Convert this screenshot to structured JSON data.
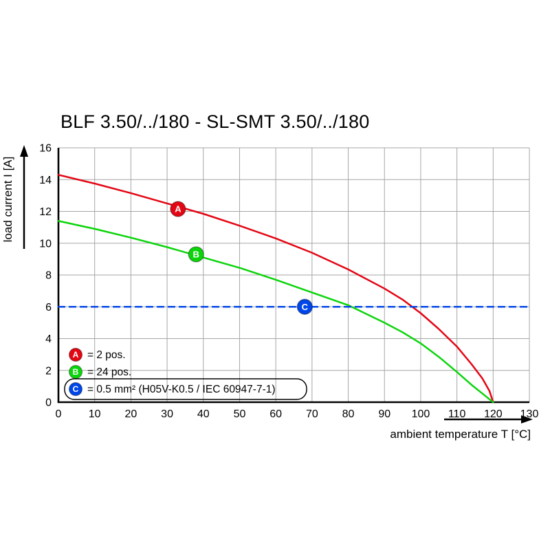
{
  "title": "BLF 3.50/../180 - SL-SMT 3.50/../180",
  "axes": {
    "x": {
      "label": "ambient temperature T [°C]",
      "min": 0,
      "max": 130,
      "tick_step": 10
    },
    "y": {
      "label": "load current I [A]",
      "min": 0,
      "max": 16,
      "tick_step": 2
    }
  },
  "legend": [
    {
      "marker": "A",
      "color": "#e30613",
      "label": "= 2 pos.",
      "boxed": false
    },
    {
      "marker": "B",
      "color": "#0bd40b",
      "label": "= 24 pos.",
      "boxed": false
    },
    {
      "marker": "C",
      "color": "#0046e8",
      "label": "= 0.5 mm² (H05V-K0.5 / IEC 60947-7-1)",
      "boxed": true
    }
  ],
  "chart_data": {
    "type": "line",
    "title": "BLF 3.50/../180 - SL-SMT 3.50/../180",
    "xlabel": "ambient temperature T [°C]",
    "ylabel": "load current I [A]",
    "xlim": [
      0,
      130
    ],
    "ylim": [
      0,
      16
    ],
    "grid": true,
    "grid_color": "#a6a6a6",
    "series": [
      {
        "name": "A",
        "label": "2 pos.",
        "color": "#e30613",
        "style": "solid",
        "points": [
          [
            0,
            14.3
          ],
          [
            10,
            13.75
          ],
          [
            20,
            13.15
          ],
          [
            30,
            12.5
          ],
          [
            40,
            11.85
          ],
          [
            50,
            11.1
          ],
          [
            60,
            10.3
          ],
          [
            70,
            9.4
          ],
          [
            80,
            8.35
          ],
          [
            90,
            7.15
          ],
          [
            95,
            6.45
          ],
          [
            100,
            5.6
          ],
          [
            105,
            4.6
          ],
          [
            110,
            3.5
          ],
          [
            114,
            2.4
          ],
          [
            117,
            1.5
          ],
          [
            119,
            0.7
          ],
          [
            120,
            0
          ]
        ],
        "marker_at": [
          33,
          12.15
        ]
      },
      {
        "name": "B",
        "label": "24 pos.",
        "color": "#0bd40b",
        "style": "solid",
        "points": [
          [
            0,
            11.4
          ],
          [
            10,
            10.9
          ],
          [
            20,
            10.35
          ],
          [
            30,
            9.75
          ],
          [
            40,
            9.1
          ],
          [
            50,
            8.45
          ],
          [
            60,
            7.7
          ],
          [
            70,
            6.9
          ],
          [
            80,
            6.1
          ],
          [
            90,
            5.0
          ],
          [
            95,
            4.4
          ],
          [
            100,
            3.7
          ],
          [
            105,
            2.85
          ],
          [
            110,
            1.9
          ],
          [
            114,
            1.1
          ],
          [
            117,
            0.55
          ],
          [
            120,
            0
          ]
        ],
        "marker_at": [
          38,
          9.3
        ]
      },
      {
        "name": "C",
        "label": "0.5 mm² (H05V-K0.5 / IEC 60947-7-1)",
        "color": "#0046e8",
        "style": "dashed",
        "points": [
          [
            0,
            6
          ],
          [
            130,
            6
          ]
        ],
        "marker_at": [
          68,
          6
        ]
      }
    ]
  }
}
